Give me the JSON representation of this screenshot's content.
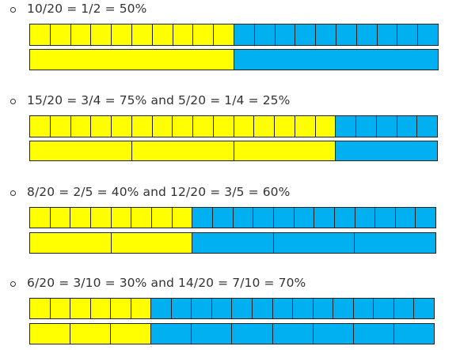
{
  "colors": {
    "shaded": "#ffff00",
    "unshaded": "#00b0f0",
    "stroke": "#222222"
  },
  "total_parts": 20,
  "examples": [
    {
      "label": "10/20 = 1/2 = 50%",
      "shaded": 10,
      "groups": [
        10,
        10
      ]
    },
    {
      "label": "15/20 = 3/4 = 75% and 5/20 = 1/4 = 25%",
      "shaded": 15,
      "groups": [
        5,
        5,
        5,
        5
      ]
    },
    {
      "label": "8/20 = 2/5 = 40% and 12/20 = 3/5 = 60%",
      "shaded": 8,
      "groups": [
        4,
        4,
        4,
        4,
        4
      ]
    },
    {
      "label": "6/20 = 3/10 = 30% and 14/20 = 7/10 = 70%",
      "shaded": 6,
      "groups": [
        2,
        2,
        2,
        2,
        2,
        2,
        2,
        2,
        2,
        2
      ]
    }
  ]
}
